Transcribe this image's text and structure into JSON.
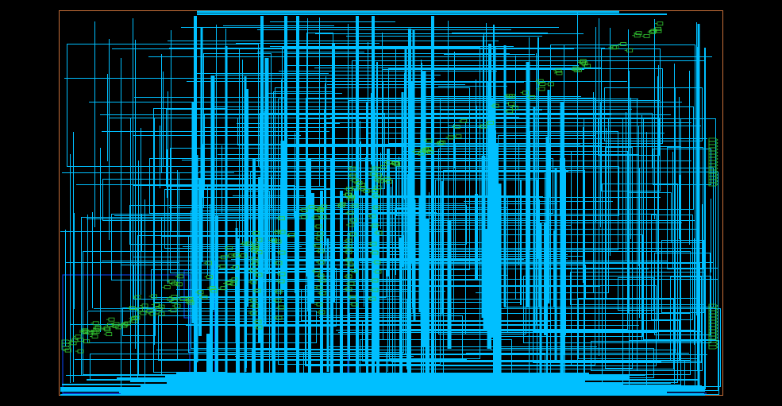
{
  "view": {
    "kind": "netlist-schematic",
    "background_color": "#000000",
    "frame_color": "#c8703a",
    "net_color": "#00bfff",
    "bus_color": "#0b3cd6",
    "instance_color": "#33cc33",
    "port_color": "#2ecc40"
  }
}
